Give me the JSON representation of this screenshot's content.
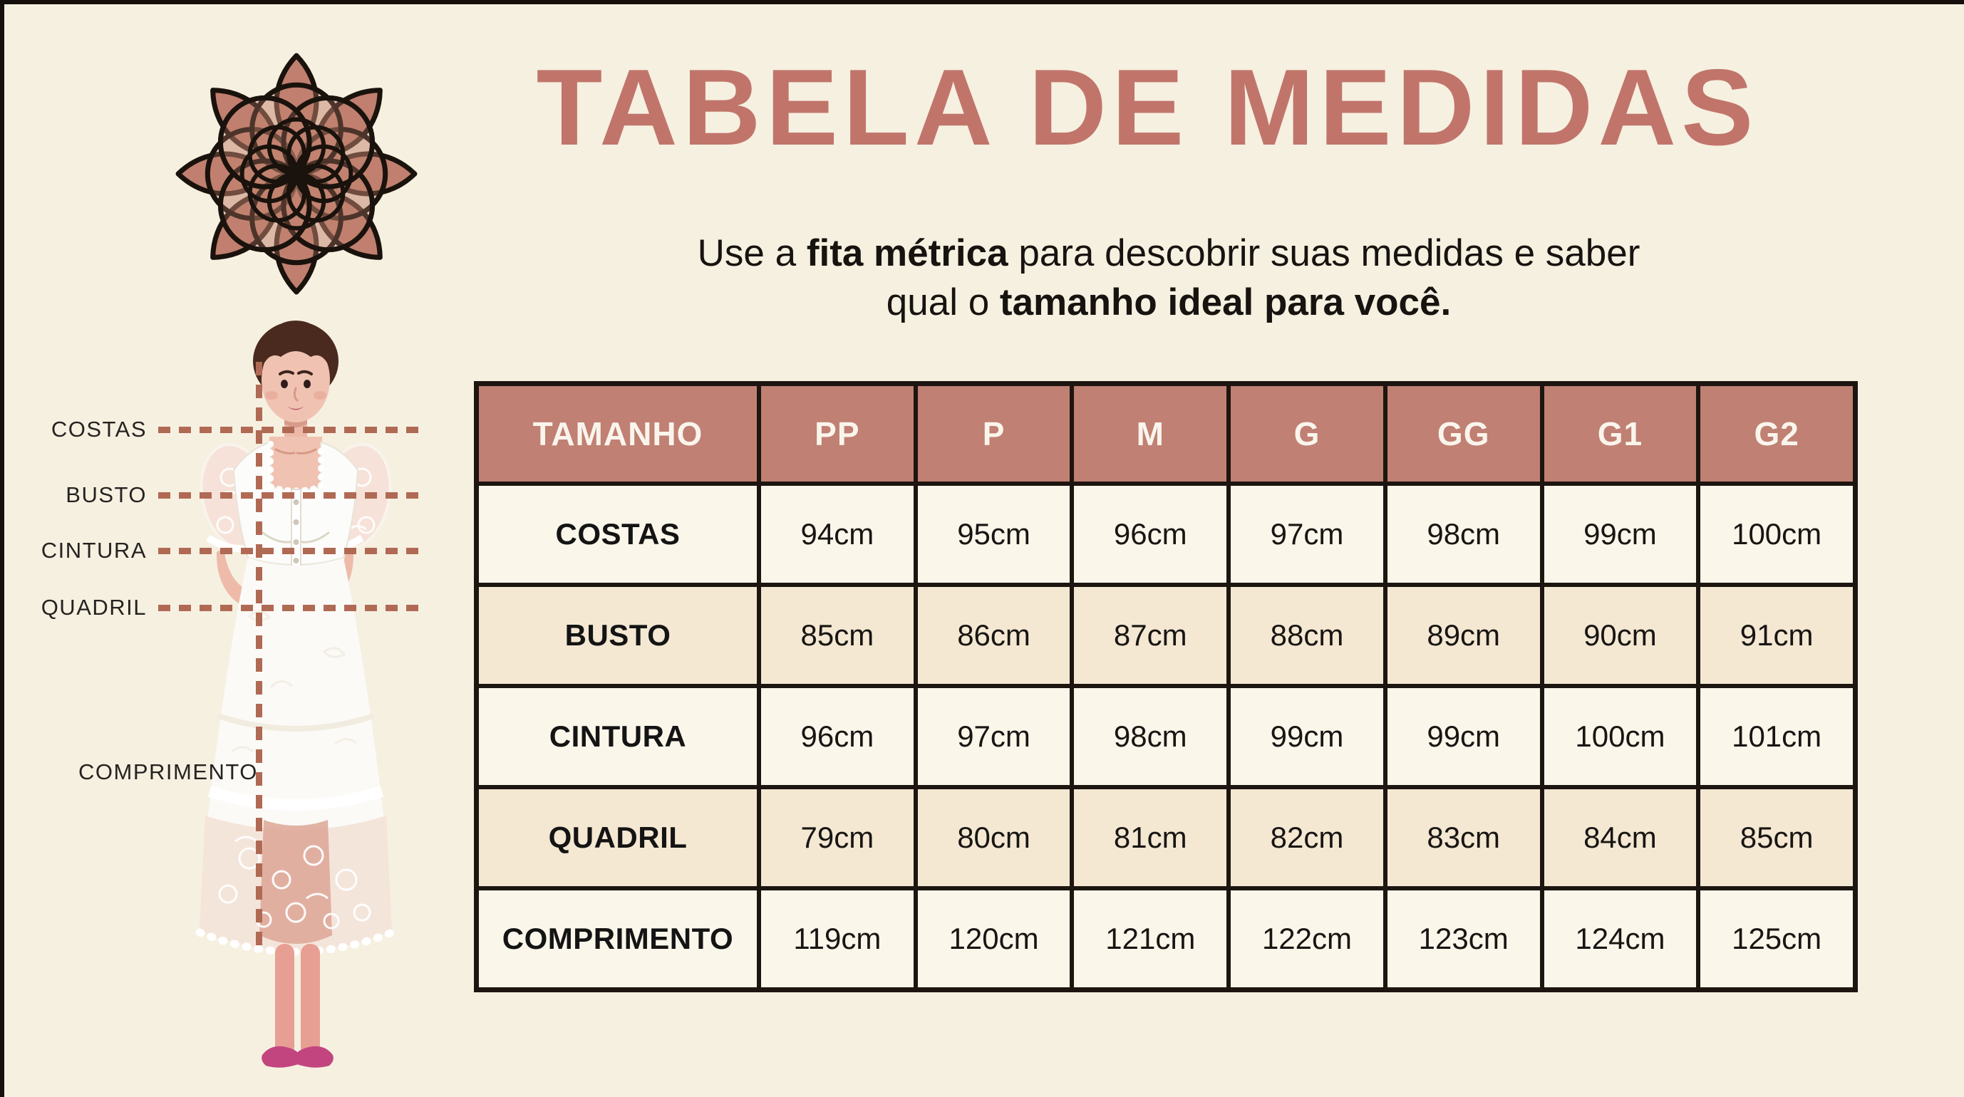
{
  "title": "TABELA DE MEDIDAS",
  "subtitle": {
    "line1_pre": "Use a ",
    "line1_bold": "fita métrica",
    "line1_post": " para descobrir suas medidas e saber",
    "line2_pre": "qual o ",
    "line2_bold": "tamanho ideal para você."
  },
  "figure": {
    "labels": {
      "costas": "COSTAS",
      "busto": "BUSTO",
      "cintura": "CINTURA",
      "quadril": "QUADRIL",
      "comprimento": "COMPRIMENTO"
    }
  },
  "icons": {
    "logo": "lotus-flower-mandala"
  },
  "table": {
    "header": [
      "TAMANHO",
      "PP",
      "P",
      "M",
      "G",
      "GG",
      "G1",
      "G2"
    ],
    "rows": [
      {
        "label": "COSTAS",
        "values": [
          "94cm",
          "95cm",
          "96cm",
          "97cm",
          "98cm",
          "99cm",
          "100cm"
        ]
      },
      {
        "label": "BUSTO",
        "values": [
          "85cm",
          "86cm",
          "87cm",
          "88cm",
          "89cm",
          "90cm",
          "91cm"
        ]
      },
      {
        "label": "CINTURA",
        "values": [
          "96cm",
          "97cm",
          "98cm",
          "99cm",
          "99cm",
          "100cm",
          "101cm"
        ]
      },
      {
        "label": "QUADRIL",
        "values": [
          "79cm",
          "80cm",
          "81cm",
          "82cm",
          "83cm",
          "84cm",
          "85cm"
        ]
      },
      {
        "label": "COMPRIMENTO",
        "values": [
          "119cm",
          "120cm",
          "121cm",
          "122cm",
          "123cm",
          "124cm",
          "125cm"
        ]
      }
    ]
  },
  "colors": {
    "background": "#f6f0e1",
    "title": "#c1756a",
    "table_header_fill": "#c08073",
    "table_header_text": "#faf5ec",
    "row_light": "#fbf6ea",
    "row_beige": "#f4e8d3",
    "table_border": "#1d1510",
    "dashed_line": "#b06a54"
  }
}
